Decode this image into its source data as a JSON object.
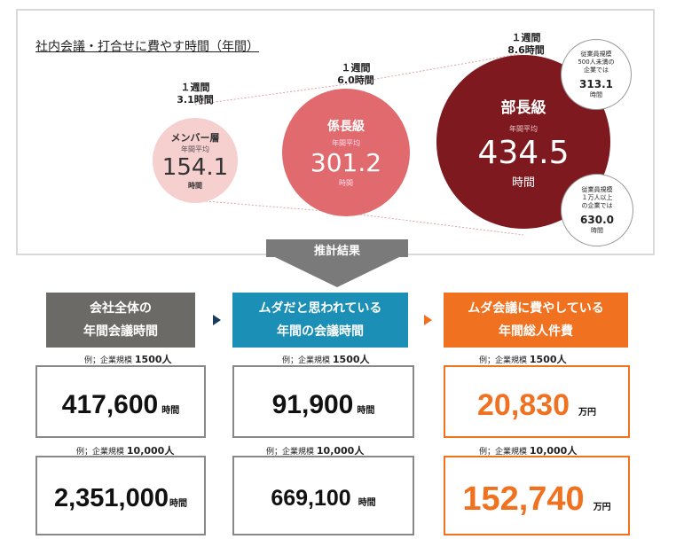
{
  "chart_data": {
    "type": "bubble",
    "title": "社内会議・打合せに費やす時間（年間）",
    "unit_label": "年間平均",
    "unit_suffix": "時間",
    "series": [
      {
        "name": "メンバー層",
        "weekly_label": "１週間",
        "weekly_value": "3.1時間",
        "annual": 154.1,
        "annual_text": "154.1"
      },
      {
        "name": "係長級",
        "weekly_label": "１週間",
        "weekly_value": "6.0時間",
        "annual": 301.2,
        "annual_text": "301.2"
      },
      {
        "name": "部長級",
        "weekly_label": "１週間",
        "weekly_value": "8.6時間",
        "annual": 434.5,
        "annual_text": "434.5"
      }
    ],
    "notes": [
      {
        "line1": "従業員規模",
        "line2": "500人未満の",
        "line3": "企業では",
        "value": "313.1",
        "unit": "時間"
      },
      {
        "line1": "従業員規模",
        "line2": "１万人以上",
        "line3": "の企業では",
        "value": "630.0",
        "unit": "時間"
      }
    ]
  },
  "arrow_label": "推計結果",
  "results": {
    "columns": [
      {
        "header_line1": "会社全体の",
        "header_line2": "年間会議時間",
        "color": "#6b6a66",
        "ex1_prefix": "例；企業規模",
        "ex1_size": "1500人",
        "value1": "417,600",
        "unit1": "時間",
        "ex2_prefix": "例；企業規模",
        "ex2_size": "10,000人",
        "value2": "2,351,000",
        "unit2": "時間"
      },
      {
        "header_line1": "ムダだと思われている",
        "header_line2": "年間の会議時間",
        "color": "#1b8fb5",
        "ex1_prefix": "例；企業規模",
        "ex1_size": "1500人",
        "value1": "91,900",
        "unit1": "時間",
        "ex2_prefix": "例；企業規模",
        "ex2_size": "10,000人",
        "value2": "669,100",
        "unit2": "時間"
      },
      {
        "header_line1": "ムダ会議に費やしている",
        "header_line2": "年間総人件費",
        "color": "#f07221",
        "ex1_prefix": "例；企業規模",
        "ex1_size": "1500人",
        "value1": "20,830",
        "unit1": "万円",
        "ex2_prefix": "例；企業規模",
        "ex2_size": "10,000人",
        "value2": "152,740",
        "unit2": "万円"
      }
    ]
  },
  "colors": {
    "member": "#f6cfcf",
    "kakaricho": "#e06a6d",
    "bucho": "#7e1a1f",
    "arrow": "#7a7a7a",
    "accent_orange": "#f07221"
  }
}
